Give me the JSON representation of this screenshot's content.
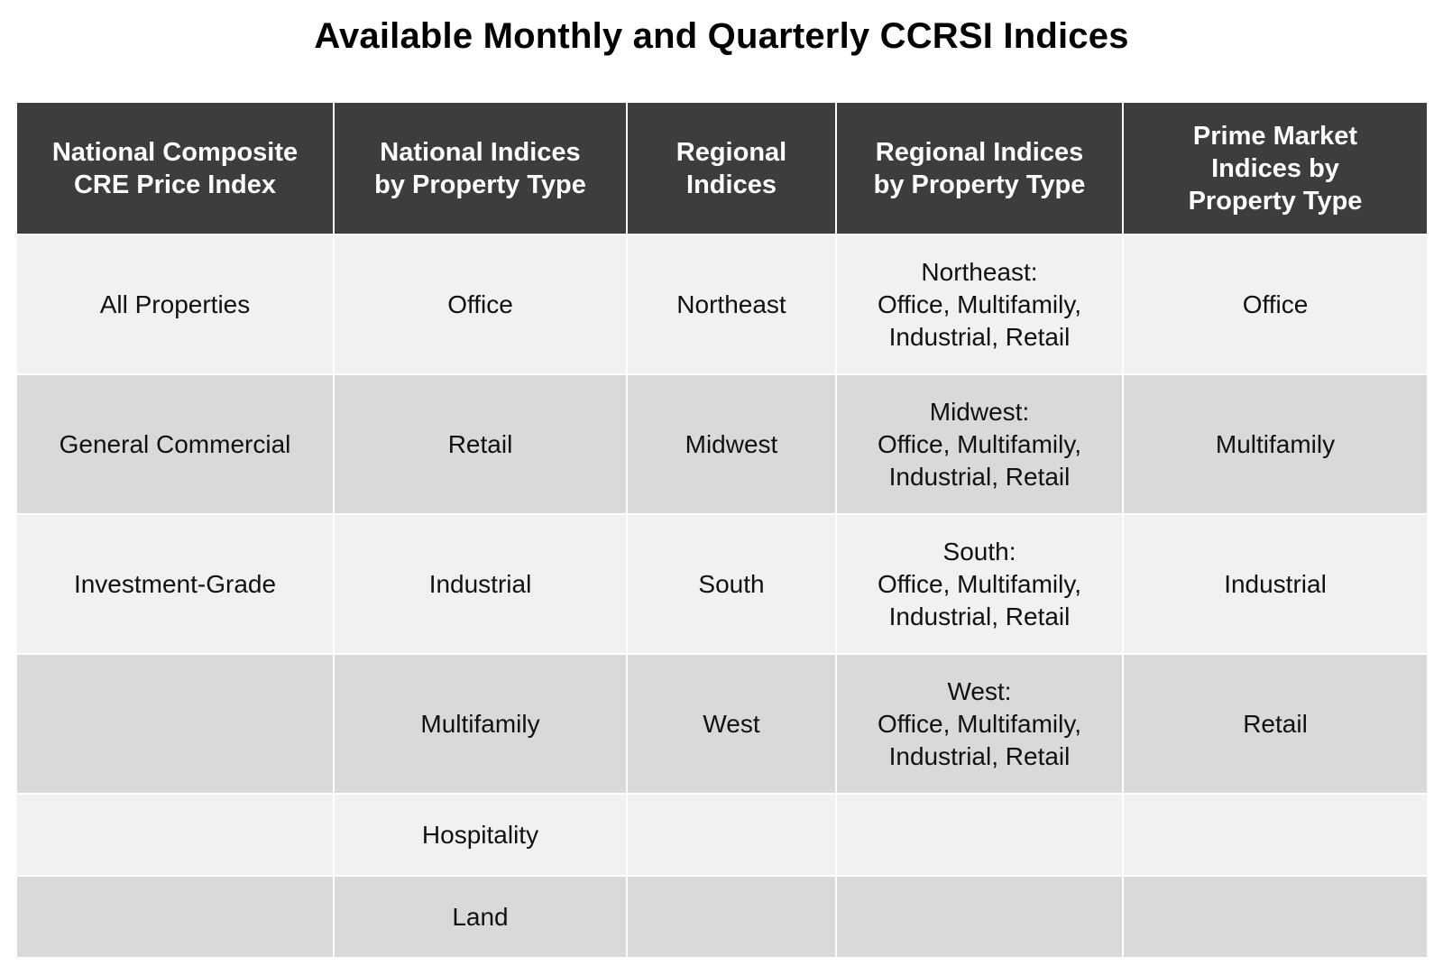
{
  "title": "Available Monthly and Quarterly CCRSI Indices",
  "table": {
    "headers": [
      "National Composite\nCRE Price Index",
      "National Indices\nby Property Type",
      "Regional\nIndices",
      "Regional Indices\nby Property Type",
      "Prime Market\nIndices by\nProperty Type"
    ],
    "rows": [
      [
        "All Properties",
        "Office",
        "Northeast",
        "Northeast:\nOffice, Multifamily,\nIndustrial, Retail",
        "Office"
      ],
      [
        "General Commercial",
        "Retail",
        "Midwest",
        "Midwest:\nOffice, Multifamily,\nIndustrial, Retail",
        "Multifamily"
      ],
      [
        "Investment-Grade",
        "Industrial",
        "South",
        "South:\nOffice, Multifamily,\nIndustrial, Retail",
        "Industrial"
      ],
      [
        "",
        "Multifamily",
        "West",
        "West:\nOffice, Multifamily,\nIndustrial, Retail",
        "Retail"
      ],
      [
        "",
        "Hospitality",
        "",
        "",
        ""
      ],
      [
        "",
        "Land",
        "",
        "",
        ""
      ]
    ]
  },
  "colors": {
    "header_bg": "#3d3d3d",
    "header_text": "#ffffff",
    "row_light": "#f1f1f1",
    "row_dark": "#d9d9d9"
  }
}
